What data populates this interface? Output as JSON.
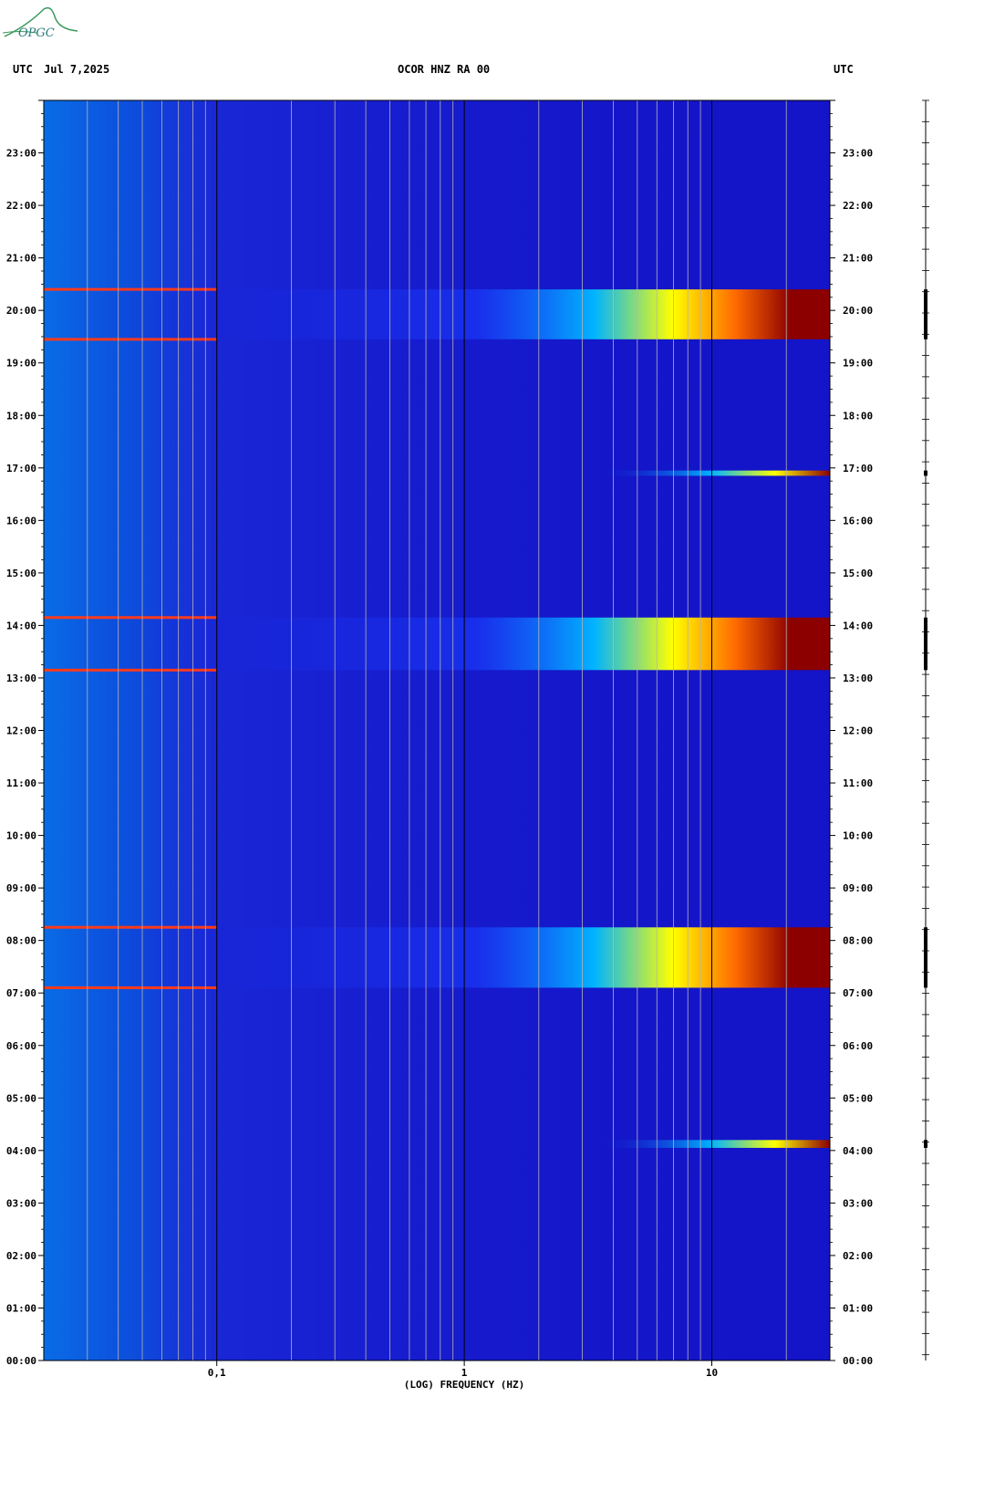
{
  "header": {
    "left_tz": "UTC",
    "date": "Jul 7,2025",
    "station": "OCOR HNZ RA 00",
    "right_tz": "UTC"
  },
  "logo": {
    "text": "OPGC"
  },
  "colors": {
    "background": "#1414c8",
    "grid_minor": "#b4b4b4",
    "grid_major": "#000000",
    "low": "#00b4ff",
    "mid": "#ffff00",
    "high": "#8c0000"
  },
  "chart_data": {
    "type": "heatmap",
    "title": "OCOR HNZ RA 00",
    "xlabel": "(LOG) FREQUENCY (HZ)",
    "ylabel": "UTC",
    "x_scale": "log",
    "xlim": [
      0.02,
      30
    ],
    "x_ticks": [
      {
        "value": 0.1,
        "label": "0,1"
      },
      {
        "value": 1,
        "label": "1"
      },
      {
        "value": 10,
        "label": "10"
      }
    ],
    "ylim": [
      "00:00",
      "24:00"
    ],
    "y_ticks": [
      "00:00",
      "01:00",
      "02:00",
      "03:00",
      "04:00",
      "05:00",
      "06:00",
      "07:00",
      "08:00",
      "09:00",
      "10:00",
      "11:00",
      "12:00",
      "13:00",
      "14:00",
      "15:00",
      "16:00",
      "17:00",
      "18:00",
      "19:00",
      "20:00",
      "21:00",
      "22:00",
      "23:00"
    ],
    "grid": true,
    "events": [
      {
        "start_hour": 7.1,
        "end_hour": 8.25,
        "level": "high"
      },
      {
        "start_hour": 13.15,
        "end_hour": 14.15,
        "level": "high"
      },
      {
        "start_hour": 19.45,
        "end_hour": 20.4,
        "level": "high"
      },
      {
        "start_hour": 4.05,
        "end_hour": 4.2,
        "level": "medium"
      },
      {
        "start_hour": 16.85,
        "end_hour": 16.95,
        "level": "medium"
      }
    ]
  }
}
